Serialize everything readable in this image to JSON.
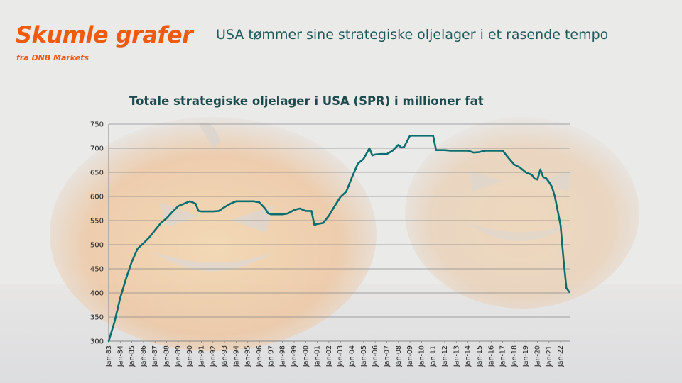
{
  "brand": {
    "title": "Skumle grafer",
    "subtitle": "fra DNB Markets"
  },
  "headline": "USA tømmer sine strategiske oljelager i et rasende tempo",
  "colors": {
    "brand": "#f05a0c",
    "line": "#0b6e6e",
    "headline": "#1f5a5a"
  },
  "chart_data": {
    "type": "line",
    "title": "Totale strategiske oljelager i USA (SPR) i millioner fat",
    "xlabel": "",
    "ylabel": "",
    "ylim": [
      300,
      750
    ],
    "yticks": [
      300,
      350,
      400,
      450,
      500,
      550,
      600,
      650,
      700,
      750
    ],
    "grid": true,
    "legend": "none",
    "x_tick_labels": [
      "Jan-83",
      "Jan-84",
      "Jan-85",
      "Jan-86",
      "Jan-87",
      "Jan-88",
      "Jan-89",
      "Jan-90",
      "Jan-91",
      "Jan-92",
      "Jan-93",
      "Jan-94",
      "Jan-95",
      "Jan-96",
      "Jan-97",
      "Jan-98",
      "Jan-99",
      "Jan-00",
      "Jan-01",
      "Jan-02",
      "Jan-03",
      "Jan-04",
      "Jan-05",
      "Jan-06",
      "Jan-07",
      "Jan-08",
      "Jan-09",
      "Jan-10",
      "Jan-11",
      "Jan-12",
      "Jan-13",
      "Jan-14",
      "Jan-15",
      "Jan-16",
      "Jan-17",
      "Jan-18",
      "Jan-19",
      "Jan-20",
      "Jan-21",
      "Jan-22"
    ],
    "series": [
      {
        "name": "",
        "x": [
          1983.0,
          1983.5,
          1984.0,
          1984.5,
          1985.0,
          1985.5,
          1986.0,
          1986.5,
          1987.0,
          1987.5,
          1988.0,
          1988.5,
          1989.0,
          1989.5,
          1990.0,
          1990.5,
          1990.75,
          1991.0,
          1991.5,
          1992.0,
          1992.5,
          1993.0,
          1993.5,
          1994.0,
          1994.5,
          1995.0,
          1995.5,
          1996.0,
          1996.5,
          1996.75,
          1997.0,
          1997.5,
          1998.0,
          1998.5,
          1999.0,
          1999.5,
          2000.0,
          2000.5,
          2000.75,
          2001.0,
          2001.5,
          2002.0,
          2002.5,
          2003.0,
          2003.5,
          2004.0,
          2004.5,
          2005.0,
          2005.5,
          2005.75,
          2006.0,
          2006.5,
          2007.0,
          2007.5,
          2008.0,
          2008.25,
          2008.5,
          2009.0,
          2009.5,
          2010.0,
          2010.5,
          2011.0,
          2011.25,
          2011.5,
          2012.0,
          2012.5,
          2013.0,
          2013.5,
          2014.0,
          2014.5,
          2015.0,
          2015.5,
          2016.0,
          2016.5,
          2017.0,
          2017.5,
          2018.0,
          2018.5,
          2019.0,
          2019.5,
          2019.75,
          2020.0,
          2020.25,
          2020.5,
          2020.75,
          2021.0,
          2021.25,
          2021.5,
          2021.75,
          2022.0,
          2022.25,
          2022.5,
          2022.75
        ],
        "values": [
          300,
          340,
          390,
          430,
          465,
          492,
          503,
          515,
          530,
          545,
          555,
          568,
          580,
          585,
          590,
          585,
          570,
          569,
          569,
          569,
          570,
          578,
          585,
          590,
          590,
          590,
          590,
          588,
          575,
          565,
          563,
          563,
          563,
          565,
          572,
          575,
          570,
          570,
          541,
          543,
          545,
          560,
          580,
          599,
          610,
          640,
          668,
          678,
          700,
          685,
          687,
          688,
          688,
          695,
          707,
          701,
          703,
          726,
          726,
          726,
          726,
          726,
          696,
          696,
          696,
          695,
          695,
          695,
          695,
          691,
          692,
          695,
          695,
          695,
          695,
          680,
          666,
          660,
          650,
          645,
          637,
          635,
          656,
          640,
          638,
          630,
          620,
          600,
          570,
          540,
          470,
          410,
          402
        ]
      }
    ]
  }
}
